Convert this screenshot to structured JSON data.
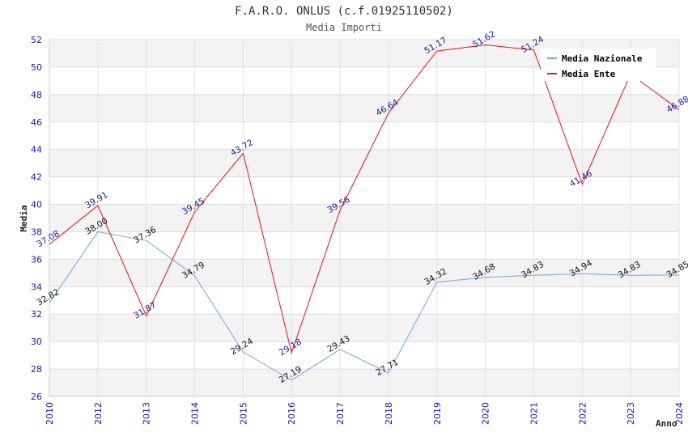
{
  "chart_data": {
    "type": "line",
    "title": "F.A.R.O. ONLUS (c.f.01925110502)",
    "subtitle": "Media Importi",
    "xlabel": "Anno",
    "ylabel": "Media",
    "categories": [
      "2010",
      "2012",
      "2013",
      "2014",
      "2015",
      "2016",
      "2017",
      "2018",
      "2019",
      "2020",
      "2021",
      "2022",
      "2023",
      "2024"
    ],
    "ylim": [
      26,
      52
    ],
    "ytick_step": 2,
    "series": [
      {
        "name": "Media Nazionale",
        "color": "#6aa8e8",
        "values": [
          32.82,
          38.0,
          37.36,
          34.79,
          29.24,
          27.19,
          29.43,
          27.71,
          34.32,
          34.68,
          34.83,
          34.94,
          34.83,
          34.85
        ],
        "labels": [
          "32.82",
          "38.00",
          "37.36",
          "34.79",
          "29.24",
          "27.19",
          "29.43",
          "27.71",
          "34.32",
          "34.68",
          "34.83",
          "34.94",
          "34.83",
          "34.85"
        ]
      },
      {
        "name": "Media Ente",
        "color": "#ee1111",
        "values": [
          37.08,
          39.91,
          31.87,
          39.45,
          43.72,
          29.18,
          39.56,
          46.64,
          51.17,
          51.62,
          51.24,
          41.46,
          49.5,
          46.88
        ],
        "labels": [
          "37.08",
          "39.91",
          "31.87",
          "39.45",
          "43.72",
          "29.18",
          "39.56",
          "46.64",
          "51.17",
          "51.62",
          "51.24",
          "41.46",
          "",
          "46.88"
        ]
      }
    ],
    "grid": true,
    "legend_position": "top-right"
  }
}
